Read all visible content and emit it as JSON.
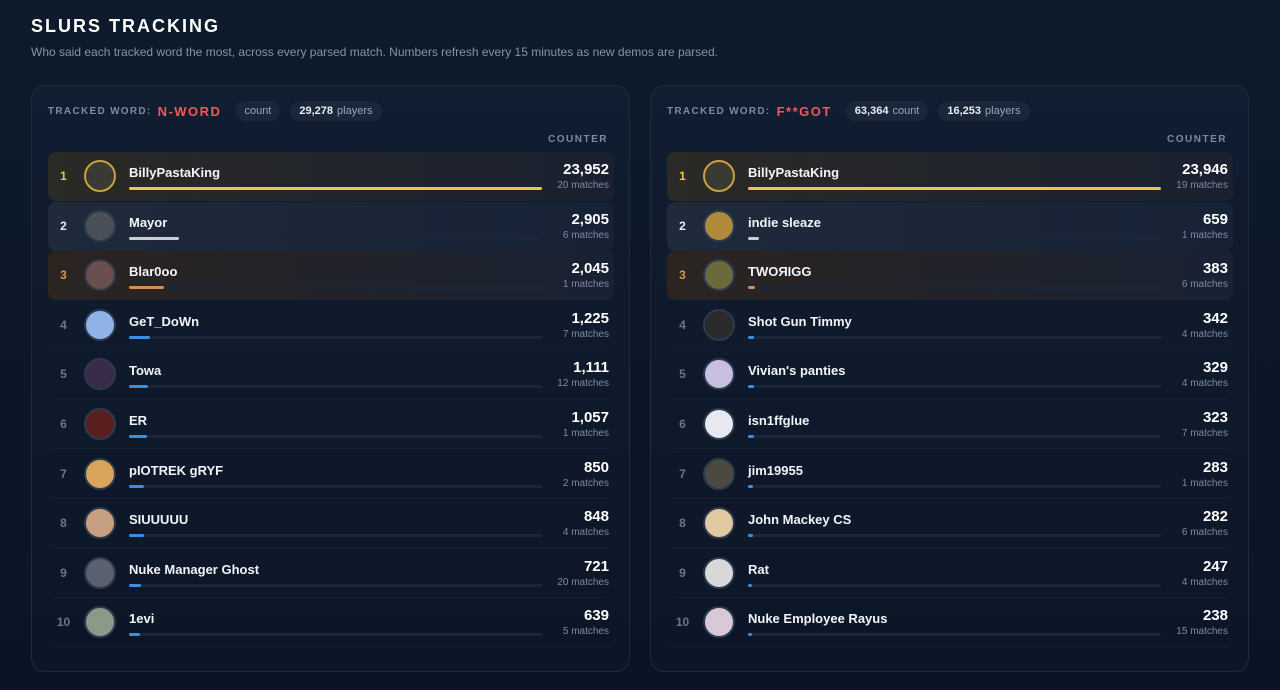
{
  "header": {
    "title": "SLURS TRACKING",
    "subtitle": "Who said each tracked word the most, across every parsed match. Numbers refresh every 15 minutes as new demos are parsed."
  },
  "panels": [
    {
      "label": "TRACKED WORD:",
      "word": "N-WORD",
      "pills": [
        {
          "unit": "count"
        },
        {
          "number": "29,278",
          "unit": "players"
        }
      ],
      "column": "COUNTER",
      "rows": [
        {
          "rank": "1",
          "name": "BillyPastaKing",
          "count": {
            "value": 23952,
            "label": "23,952"
          },
          "matches": "20 matches"
        },
        {
          "rank": "2",
          "name": "Mayor",
          "count": {
            "value": 2905,
            "label": "2,905"
          },
          "matches": "6 matches"
        },
        {
          "rank": "3",
          "name": "Blar0oo",
          "count": {
            "value": 2045,
            "label": "2,045"
          },
          "matches": "1 matches"
        },
        {
          "rank": "4",
          "name": "GeT_DoWn",
          "count": {
            "value": 1225,
            "label": "1,225"
          },
          "matches": "7 matches"
        },
        {
          "rank": "5",
          "name": "Towa",
          "count": {
            "value": 1111,
            "label": "1,111"
          },
          "matches": "12 matches"
        },
        {
          "rank": "6",
          "name": "ER",
          "count": {
            "value": 1057,
            "label": "1,057"
          },
          "matches": "1 matches"
        },
        {
          "rank": "7",
          "name": "pIOTREK gRYF",
          "count": 850,
          "matches": "2 matches"
        },
        {
          "rank": "8",
          "name": "SIUUUUU",
          "count": 848,
          "matches": "4 matches"
        },
        {
          "rank": "9",
          "name": "Nuke Manager Ghost",
          "count": 721,
          "matches": "20 matches"
        },
        {
          "rank": "10",
          "name": "1evi",
          "count": 639,
          "matches": "5 matches"
        }
      ]
    },
    {
      "label": "TRACKED WORD:",
      "word": "F**GOT",
      "pills": [
        {
          "number": "63,364",
          "unit": "count"
        },
        {
          "number": "16,253",
          "unit": "players"
        }
      ],
      "column": "COUNTER",
      "rows": [
        {
          "rank": "1",
          "name": "BillyPastaKing",
          "count": {
            "value": 23946,
            "label": "23,946"
          },
          "matches": "19 matches"
        },
        {
          "rank": "2",
          "name": "indie sleaze",
          "count": 659,
          "matches": "1 matches"
        },
        {
          "rank": "3",
          "name": "TWOЯIGG",
          "count": 383,
          "matches": "6 matches"
        },
        {
          "rank": "4",
          "name": "Shot Gun Timmy",
          "count": 342,
          "matches": "4 matches"
        },
        {
          "rank": "5",
          "name": "Vivian's panties",
          "count": 329,
          "matches": "4 matches"
        },
        {
          "rank": "6",
          "name": "isn1ffglue",
          "count": 323,
          "matches": "7 matches"
        },
        {
          "rank": "7",
          "name": "jim19955",
          "count": 283,
          "matches": "1 matches"
        },
        {
          "rank": "8",
          "name": "John Mackey CS",
          "count": 282,
          "matches": "6 matches"
        },
        {
          "rank": "9",
          "name": "Rat",
          "count": 247,
          "matches": "4 matches"
        },
        {
          "rank": "10",
          "name": "Nuke Employee Rayus",
          "count": 238,
          "matches": "15 matches"
        }
      ]
    }
  ]
}
